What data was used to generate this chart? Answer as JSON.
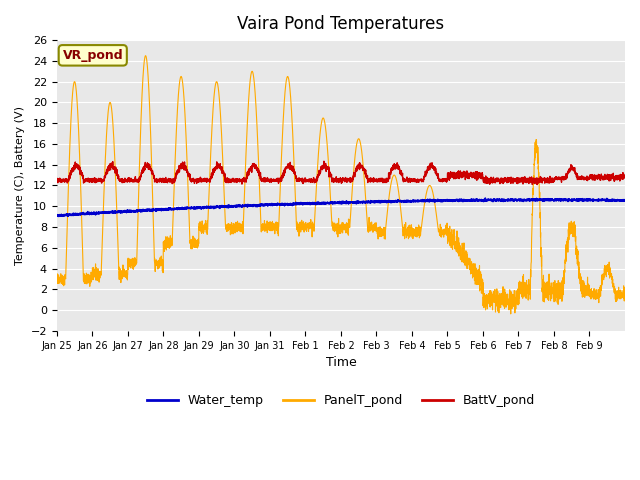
{
  "title": "Vaira Pond Temperatures",
  "xlabel": "Time",
  "ylabel": "Temperature (C), Battery (V)",
  "ylim": [
    -2,
    26
  ],
  "yticks": [
    -2,
    0,
    2,
    4,
    6,
    8,
    10,
    12,
    14,
    16,
    18,
    20,
    22,
    24,
    26
  ],
  "plot_bg_color": "#e8e8e8",
  "water_color": "#0000cc",
  "panel_color": "#ffaa00",
  "batt_color": "#cc0000",
  "legend_labels": [
    "Water_temp",
    "PanelT_pond",
    "BattV_pond"
  ],
  "subtitle_box_text": "VR_pond",
  "subtitle_box_facecolor": "#ffffcc",
  "subtitle_box_edgecolor": "#888800",
  "subtitle_box_textcolor": "#880000",
  "tick_labels": [
    "Jan 25",
    "Jan 26",
    "Jan 27",
    "Jan 28",
    "Jan 29",
    "Jan 30",
    "Jan 31",
    "Feb 1",
    "Feb 2",
    "Feb 3",
    "Feb 4",
    "Feb 5",
    "Feb 6",
    "Feb 7",
    "Feb 8",
    "Feb 9"
  ]
}
